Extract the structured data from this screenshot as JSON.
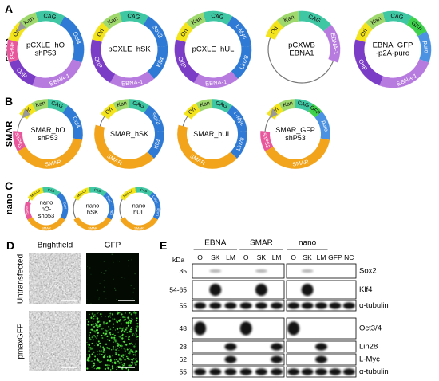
{
  "panelA": {
    "label": "A",
    "group": "EBNA",
    "plasmids": [
      {
        "name": [
          "pCXLE_hO",
          "shP53"
        ],
        "features": [
          "Ori",
          "Kan",
          "CAG",
          "Oct4",
          "EBNA-1",
          "OriP",
          "shP53"
        ]
      },
      {
        "name": [
          "pCXLE_hSK"
        ],
        "features": [
          "Ori",
          "Kan",
          "CAG",
          "Sox2",
          "Klf4",
          "EBNA-1",
          "OriP"
        ]
      },
      {
        "name": [
          "pCXLE_hUL"
        ],
        "features": [
          "Ori",
          "Kan",
          "CAG",
          "L-Myc",
          "Lin28",
          "EBNA-1",
          "OriP"
        ]
      },
      {
        "name": [
          "pCXWB",
          "EBNA1"
        ],
        "features": [
          "Ori",
          "Kan",
          "CAG",
          "EBNA-1"
        ]
      },
      {
        "name": [
          "EBNA_GFP",
          "-p2A-puro"
        ],
        "features": [
          "Ori",
          "Kan",
          "CAG",
          "GFP",
          "puro",
          "EBNA-1",
          "OriP"
        ]
      }
    ]
  },
  "panelB": {
    "label": "B",
    "group": "SMAR",
    "plasmids": [
      {
        "name": [
          "SMAR_hO",
          "shP53"
        ],
        "features": [
          "Ori",
          "Kan",
          "CAG",
          "Oct4",
          "SMAR",
          "shP53"
        ]
      },
      {
        "name": [
          "SMAR_hSK"
        ],
        "features": [
          "Ori",
          "Kan",
          "CAG",
          "Sox2",
          "Klf4",
          "SMAR"
        ]
      },
      {
        "name": [
          "SMAR_hUL"
        ],
        "features": [
          "Ori",
          "Kan",
          "CAG",
          "L-Myc",
          "Lin28",
          "SMAR"
        ]
      },
      {
        "name": [
          "SMAR_GFP",
          "shP53"
        ],
        "features": [
          "Ori",
          "Kan",
          "CAG",
          "GFP",
          "puro",
          "SMAR",
          "shP53"
        ]
      }
    ]
  },
  "panelC": {
    "label": "C",
    "group": "nano",
    "plasmids": [
      {
        "name": [
          "nano",
          "hO-",
          "shp53"
        ],
        "features": [
          "Mini-Ori",
          "CAG",
          "Oct4",
          "SMAR",
          "shp53"
        ]
      },
      {
        "name": [
          "nano",
          "hSK"
        ],
        "features": [
          "Mini-Ori",
          "CAG",
          "Sox2",
          "Klf4",
          "SMAR"
        ]
      },
      {
        "name": [
          "nano",
          "hUL"
        ],
        "features": [
          "Mini-Ori",
          "CAG",
          "L-Myc",
          "Lin28",
          "SMAR"
        ]
      }
    ]
  },
  "panelD": {
    "label": "D",
    "columns": [
      "Brightfield",
      "GFP"
    ],
    "rows": [
      "Untransfected",
      "pmaxGFP"
    ]
  },
  "panelE": {
    "label": "E",
    "unit": "kDa",
    "groups": [
      "EBNA",
      "SMAR",
      "nano"
    ],
    "lanes": [
      "O",
      "SK",
      "LM",
      "O",
      "SK",
      "LM",
      "O",
      "SK",
      "LM",
      "GFP",
      "NC"
    ],
    "blots": [
      {
        "kda": 35,
        "target": "Sox2"
      },
      {
        "kda": "54-65",
        "target": "Klf4"
      },
      {
        "kda": 55,
        "target": "α-tubulin"
      },
      {
        "kda": 48,
        "target": "Oct3/4"
      },
      {
        "kda": 28,
        "target": "Lin28"
      },
      {
        "kda": 62,
        "target": "L-Myc"
      },
      {
        "kda": 55,
        "target": "α-tubulin"
      }
    ]
  }
}
